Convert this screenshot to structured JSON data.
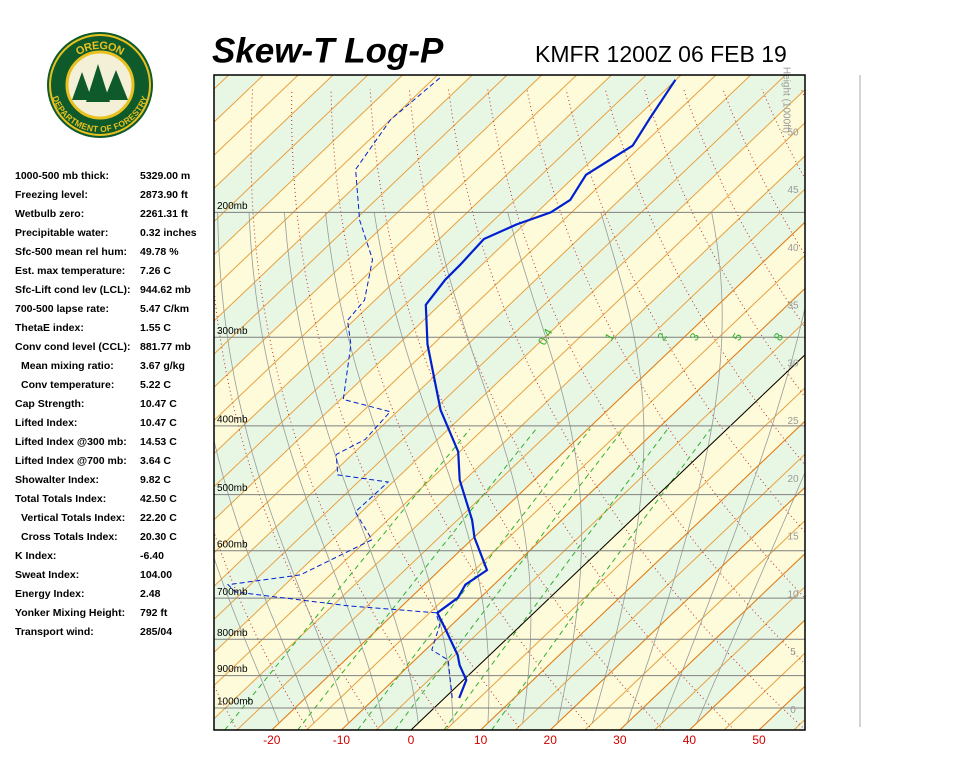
{
  "logo": {
    "top": "OREGON",
    "bottom": "DEPARTMENT OF FORESTRY"
  },
  "stats": [
    [
      "1000-500 mb thick:",
      "5329.00 m"
    ],
    [
      "Freezing level:",
      "2873.90 ft"
    ],
    [
      "Wetbulb zero:",
      "2261.31 ft"
    ],
    [
      "Precipitable water:",
      "0.32 inches"
    ],
    [
      "Sfc-500 mean rel hum:",
      "49.78 %"
    ],
    [
      "Est. max temperature:",
      "7.26 C"
    ],
    [
      "Sfc-Lift cond lev (LCL):",
      "944.62 mb"
    ],
    [
      "700-500 lapse rate:",
      "5.47 C/km"
    ],
    [
      "ThetaE index:",
      "1.55 C"
    ],
    [
      "Conv cond level (CCL):",
      "881.77 mb"
    ],
    [
      "Mean mixing ratio:",
      "3.67 g/kg"
    ],
    [
      "Conv temperature:",
      "5.22 C"
    ],
    [
      "Cap Strength:",
      "10.47 C"
    ],
    [
      "Lifted Index:",
      "10.47 C"
    ],
    [
      "Lifted Index @300 mb:",
      "14.53 C"
    ],
    [
      "Lifted Index @700 mb:",
      "3.64 C"
    ],
    [
      "Showalter Index:",
      "9.82 C"
    ],
    [
      "Total Totals Index:",
      "42.50 C"
    ],
    [
      "Vertical Totals Index:",
      "22.20 C"
    ],
    [
      "Cross Totals Index:",
      "20.30 C"
    ],
    [
      "K Index:",
      "-6.40"
    ],
    [
      "Sweat Index:",
      "104.00"
    ],
    [
      "Energy Index:",
      "2.48"
    ],
    [
      "Yonker Mixing Height:",
      "792 ft"
    ],
    [
      "Transport wind:",
      "285/04"
    ]
  ],
  "chart_data": {
    "type": "skewt",
    "title": "Skew-T Log-P",
    "subtitle": "KMFR 1200Z 06 FEB 19",
    "xlim": [
      -28.3,
      56.6
    ],
    "xticks": [
      -20,
      -10,
      0,
      10,
      20,
      30,
      40,
      50
    ],
    "ylim": [
      1074,
      128
    ],
    "log_y": true,
    "yticks": [
      {
        "value": 200,
        "label": "200mb"
      },
      {
        "value": 300,
        "label": "300mb"
      },
      {
        "value": 400,
        "label": "400mb"
      },
      {
        "value": 500,
        "label": "500mb"
      },
      {
        "value": 600,
        "label": "600mb"
      },
      {
        "value": 700,
        "label": "700mb"
      },
      {
        "value": 800,
        "label": "800mb"
      },
      {
        "value": 900,
        "label": "900mb"
      },
      {
        "value": 1000,
        "label": "1000mb"
      }
    ],
    "height_label": "Height (1000ft)",
    "height_lim": [
      -1.7,
      55
    ],
    "height_ticks": [
      0,
      5,
      10,
      15,
      20,
      25,
      30,
      35,
      40,
      45,
      50
    ],
    "mixing_ratios": [
      0.4,
      1,
      2,
      3,
      5,
      8
    ],
    "series": [
      {
        "color": "#0020d0",
        "pressure": [
          968,
          913,
          870,
          842,
          776,
          734,
          699,
          670,
          639,
          575,
          543,
          477,
          435,
          380,
          307,
          270,
          249,
          237,
          218,
          208,
          200,
          192,
          177,
          161,
          147,
          130
        ],
        "values": [
          2.1,
          0.4,
          -2.8,
          -4.6,
          -10.1,
          -13.9,
          -13.2,
          -14.1,
          -13.2,
          -19.9,
          -22.9,
          -30.7,
          -35.2,
          -44.0,
          -55.8,
          -62.0,
          -63.0,
          -63.1,
          -63.6,
          -61.1,
          -58.0,
          -57.1,
          -58.6,
          -56.3,
          -58.0,
          -60.1
        ]
      },
      {
        "color": "#0020d0",
        "pressure": [
          968,
          913,
          856,
          828,
          764,
          734,
          718,
          686,
          670,
          649,
          579,
          529,
          480,
          469,
          439,
          418,
          382,
          367,
          307,
          284,
          266,
          233,
          205,
          174,
          148,
          129
        ],
        "values": [
          1.1,
          -1.9,
          -5.2,
          -9.1,
          -11.7,
          -14.1,
          -27.5,
          -46.0,
          -48.2,
          -39.3,
          -34.3,
          -40.9,
          -40.7,
          -49.0,
          -52.3,
          -50.4,
          -51.0,
          -59.6,
          -66.8,
          -70.9,
          -71.5,
          -76.5,
          -84.3,
          -92.5,
          -95.0,
          -94.2
        ]
      }
    ]
  }
}
